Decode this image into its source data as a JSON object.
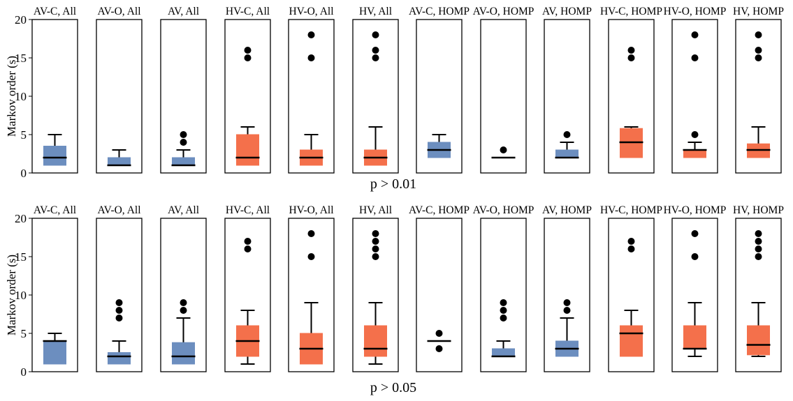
{
  "chart_data": [
    {
      "type": "box",
      "caption": "p > 0.01",
      "ylabel": "Markov order (s)",
      "ylim": [
        0,
        20
      ],
      "yticks": [
        0,
        5,
        10,
        15,
        20
      ],
      "panels": [
        {
          "title": "AV-C, All",
          "group": "AV",
          "box": {
            "q1": 1,
            "median": 2,
            "q3": 3.5,
            "whisker_low": 1,
            "whisker_high": 5
          },
          "outliers": []
        },
        {
          "title": "AV-O, All",
          "group": "AV",
          "box": {
            "q1": 1,
            "median": 1,
            "q3": 2,
            "whisker_low": 1,
            "whisker_high": 3
          },
          "outliers": []
        },
        {
          "title": "AV, All",
          "group": "AV",
          "box": {
            "q1": 1,
            "median": 1,
            "q3": 2,
            "whisker_low": 1,
            "whisker_high": 3
          },
          "outliers": [
            4,
            5
          ]
        },
        {
          "title": "HV-C, All",
          "group": "HV",
          "box": {
            "q1": 1,
            "median": 2,
            "q3": 5,
            "whisker_low": 1,
            "whisker_high": 6
          },
          "outliers": [
            15,
            16
          ]
        },
        {
          "title": "HV-O, All",
          "group": "HV",
          "box": {
            "q1": 1,
            "median": 2,
            "q3": 3,
            "whisker_low": 1,
            "whisker_high": 5
          },
          "outliers": [
            15,
            18
          ]
        },
        {
          "title": "HV, All",
          "group": "HV",
          "box": {
            "q1": 1,
            "median": 2,
            "q3": 3,
            "whisker_low": 1,
            "whisker_high": 6
          },
          "outliers": [
            15,
            16,
            18
          ]
        },
        {
          "title": "AV-C, HOMP",
          "group": "AV",
          "box": {
            "q1": 2,
            "median": 3,
            "q3": 4,
            "whisker_low": 2,
            "whisker_high": 5
          },
          "outliers": []
        },
        {
          "title": "AV-O, HOMP",
          "group": "AV",
          "box": {
            "q1": 2,
            "median": 2,
            "q3": 2,
            "whisker_low": 2,
            "whisker_high": 2
          },
          "outliers": [
            3
          ]
        },
        {
          "title": "AV, HOMP",
          "group": "AV",
          "box": {
            "q1": 2,
            "median": 2,
            "q3": 3,
            "whisker_low": 2,
            "whisker_high": 4
          },
          "outliers": [
            5
          ]
        },
        {
          "title": "HV-C, HOMP",
          "group": "HV",
          "box": {
            "q1": 2,
            "median": 4,
            "q3": 5.8,
            "whisker_low": 2,
            "whisker_high": 6
          },
          "outliers": [
            15,
            16
          ]
        },
        {
          "title": "HV-O, HOMP",
          "group": "HV",
          "box": {
            "q1": 2,
            "median": 3,
            "q3": 3,
            "whisker_low": 2,
            "whisker_high": 4
          },
          "outliers": [
            5,
            15,
            18
          ]
        },
        {
          "title": "HV, HOMP",
          "group": "HV",
          "box": {
            "q1": 2,
            "median": 3,
            "q3": 3.8,
            "whisker_low": 2,
            "whisker_high": 6
          },
          "outliers": [
            15,
            16,
            18
          ]
        }
      ]
    },
    {
      "type": "box",
      "caption": "p > 0.05",
      "ylabel": "Markov order (s)",
      "ylim": [
        0,
        20
      ],
      "yticks": [
        0,
        5,
        10,
        15,
        20
      ],
      "panels": [
        {
          "title": "AV-C, All",
          "group": "AV",
          "box": {
            "q1": 1,
            "median": 4,
            "q3": 4,
            "whisker_low": 1,
            "whisker_high": 5
          },
          "outliers": []
        },
        {
          "title": "AV-O, All",
          "group": "AV",
          "box": {
            "q1": 1,
            "median": 2,
            "q3": 2.5,
            "whisker_low": 1,
            "whisker_high": 4
          },
          "outliers": [
            7,
            8,
            9
          ]
        },
        {
          "title": "AV, All",
          "group": "AV",
          "box": {
            "q1": 1,
            "median": 2,
            "q3": 3.8,
            "whisker_low": 1,
            "whisker_high": 7
          },
          "outliers": [
            8,
            9
          ]
        },
        {
          "title": "HV-C, All",
          "group": "HV",
          "box": {
            "q1": 2,
            "median": 4,
            "q3": 6,
            "whisker_low": 1,
            "whisker_high": 8
          },
          "outliers": [
            16,
            17
          ]
        },
        {
          "title": "HV-O, All",
          "group": "HV",
          "box": {
            "q1": 1,
            "median": 3,
            "q3": 5,
            "whisker_low": 1,
            "whisker_high": 9
          },
          "outliers": [
            15,
            18
          ]
        },
        {
          "title": "HV, All",
          "group": "HV",
          "box": {
            "q1": 2,
            "median": 3,
            "q3": 6,
            "whisker_low": 1,
            "whisker_high": 9
          },
          "outliers": [
            15,
            16,
            17,
            18
          ]
        },
        {
          "title": "AV-C, HOMP",
          "group": "AV",
          "box": {
            "q1": 4,
            "median": 4,
            "q3": 4,
            "whisker_low": 4,
            "whisker_high": 4
          },
          "outliers": [
            3,
            5
          ]
        },
        {
          "title": "AV-O, HOMP",
          "group": "AV",
          "box": {
            "q1": 2,
            "median": 2,
            "q3": 3,
            "whisker_low": 2,
            "whisker_high": 4
          },
          "outliers": [
            7,
            8,
            9
          ]
        },
        {
          "title": "AV, HOMP",
          "group": "AV",
          "box": {
            "q1": 2,
            "median": 3,
            "q3": 4,
            "whisker_low": 2,
            "whisker_high": 7
          },
          "outliers": [
            8,
            9
          ]
        },
        {
          "title": "HV-C, HOMP",
          "group": "HV",
          "box": {
            "q1": 2,
            "median": 5,
            "q3": 6,
            "whisker_low": 2,
            "whisker_high": 8
          },
          "outliers": [
            16,
            17
          ]
        },
        {
          "title": "HV-O, HOMP",
          "group": "HV",
          "box": {
            "q1": 3,
            "median": 3,
            "q3": 6,
            "whisker_low": 2,
            "whisker_high": 9
          },
          "outliers": [
            15,
            18
          ]
        },
        {
          "title": "HV, HOMP",
          "group": "HV",
          "box": {
            "q1": 2.2,
            "median": 3.5,
            "q3": 6,
            "whisker_low": 2,
            "whisker_high": 9
          },
          "outliers": [
            15,
            16,
            17,
            18
          ]
        }
      ]
    }
  ],
  "colors": {
    "AV": "#6c8ebf",
    "HV": "#f4704b",
    "line": "#000000"
  }
}
